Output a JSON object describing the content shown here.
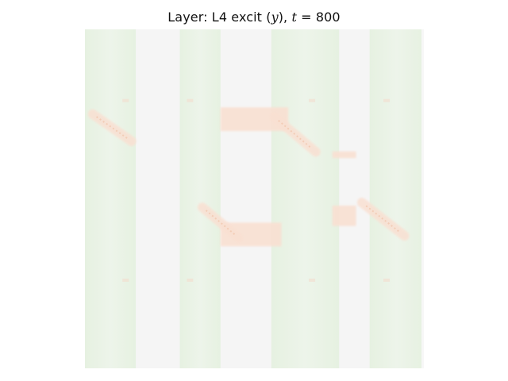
{
  "chart_data": {
    "type": "heatmap",
    "title": {
      "prefix": "Layer: L4 excit (",
      "var": "y",
      "mid": "), ",
      "tvar": "t",
      "eq": " = ",
      "tval": "800"
    },
    "axes_visible": false,
    "colors": {
      "background": "#f5f5f5",
      "green_band": "#e8f2e4",
      "green_band_edge": "#e2efdc",
      "orange_patch": "#f9e0d2",
      "orange_stroke": "#f2c9b0"
    },
    "green_bands_x": [
      [
        0.0,
        0.15
      ],
      [
        0.28,
        0.4
      ],
      [
        0.55,
        0.75
      ],
      [
        0.84,
        1.0
      ]
    ],
    "orange_bars": [
      {
        "x": [
          0.4,
          0.6
        ],
        "y": [
          0.23,
          0.3
        ]
      },
      {
        "x": [
          0.4,
          0.58
        ],
        "y": [
          0.57,
          0.64
        ]
      },
      {
        "x": [
          0.73,
          0.8
        ],
        "y": [
          0.36,
          0.38
        ]
      },
      {
        "x": [
          0.73,
          0.8
        ],
        "y": [
          0.52,
          0.58
        ]
      }
    ],
    "orange_blobs": [
      {
        "cx": 0.08,
        "cy": 0.29,
        "angle": 35,
        "len": 0.14
      },
      {
        "cx": 0.62,
        "cy": 0.31,
        "angle": 40,
        "len": 0.16
      },
      {
        "cx": 0.4,
        "cy": 0.57,
        "angle": 40,
        "len": 0.14
      },
      {
        "cx": 0.88,
        "cy": 0.56,
        "angle": 38,
        "len": 0.16
      }
    ]
  }
}
